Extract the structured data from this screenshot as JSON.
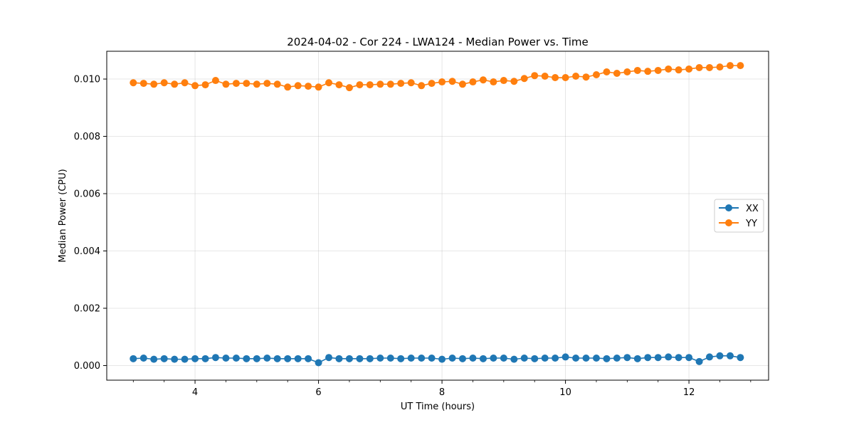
{
  "chart_data": {
    "type": "line",
    "title": "2024-04-02 - Cor 224 - LWA124 - Median Power vs. Time",
    "xlabel": "UT Time (hours)",
    "ylabel": "Median Power (CPU)",
    "xlim": [
      2.57,
      13.29
    ],
    "ylim": [
      -0.00051,
      0.01097
    ],
    "xticks": [
      4,
      6,
      8,
      10,
      12
    ],
    "xtick_labels": [
      "4",
      "6",
      "8",
      "10",
      "12"
    ],
    "yticks": [
      0.0,
      0.002,
      0.004,
      0.006,
      0.008,
      0.01
    ],
    "ytick_labels": [
      "0.000",
      "0.002",
      "0.004",
      "0.006",
      "0.008",
      "0.010"
    ],
    "grid": true,
    "legend_position": "center-right",
    "x": [
      3.0,
      3.167,
      3.333,
      3.5,
      3.667,
      3.833,
      4.0,
      4.167,
      4.333,
      4.5,
      4.667,
      4.833,
      5.0,
      5.167,
      5.333,
      5.5,
      5.667,
      5.833,
      6.0,
      6.167,
      6.333,
      6.5,
      6.667,
      6.833,
      7.0,
      7.167,
      7.333,
      7.5,
      7.667,
      7.833,
      8.0,
      8.167,
      8.333,
      8.5,
      8.667,
      8.833,
      9.0,
      9.167,
      9.333,
      9.5,
      9.667,
      9.833,
      10.0,
      10.167,
      10.333,
      10.5,
      10.667,
      10.833,
      11.0,
      11.167,
      11.333,
      11.5,
      11.667,
      11.833,
      12.0,
      12.167,
      12.333,
      12.5,
      12.667,
      12.833
    ],
    "series": [
      {
        "name": "XX",
        "color": "#1f77b4",
        "values": [
          0.00024,
          0.00026,
          0.00022,
          0.00024,
          0.00022,
          0.00022,
          0.00024,
          0.00024,
          0.00028,
          0.00026,
          0.00026,
          0.00024,
          0.00024,
          0.00026,
          0.00024,
          0.00024,
          0.00024,
          0.00024,
          0.0001,
          0.00028,
          0.00024,
          0.00024,
          0.00024,
          0.00024,
          0.00026,
          0.00026,
          0.00024,
          0.00026,
          0.00026,
          0.00026,
          0.00022,
          0.00026,
          0.00024,
          0.00026,
          0.00024,
          0.00026,
          0.00026,
          0.00022,
          0.00026,
          0.00024,
          0.00026,
          0.00026,
          0.0003,
          0.00026,
          0.00026,
          0.00026,
          0.00024,
          0.00026,
          0.00028,
          0.00024,
          0.00028,
          0.00028,
          0.0003,
          0.00028,
          0.00028,
          0.00014,
          0.0003,
          0.00034,
          0.00034,
          0.00028
        ]
      },
      {
        "name": "YY",
        "color": "#ff7f0e",
        "values": [
          0.00987,
          0.00985,
          0.00982,
          0.00987,
          0.00982,
          0.00987,
          0.00977,
          0.0098,
          0.00995,
          0.00982,
          0.00985,
          0.00985,
          0.00982,
          0.00985,
          0.00982,
          0.00972,
          0.00977,
          0.00975,
          0.00972,
          0.00987,
          0.0098,
          0.0097,
          0.0098,
          0.0098,
          0.00982,
          0.00982,
          0.00985,
          0.00987,
          0.00977,
          0.00985,
          0.0099,
          0.00992,
          0.00982,
          0.0099,
          0.00997,
          0.0099,
          0.00995,
          0.00992,
          0.01002,
          0.01012,
          0.0101,
          0.01005,
          0.01005,
          0.0101,
          0.01007,
          0.01015,
          0.01025,
          0.0102,
          0.01025,
          0.0103,
          0.01027,
          0.0103,
          0.01035,
          0.01032,
          0.01035,
          0.0104,
          0.0104,
          0.01042,
          0.01047,
          0.01047
        ]
      }
    ]
  }
}
